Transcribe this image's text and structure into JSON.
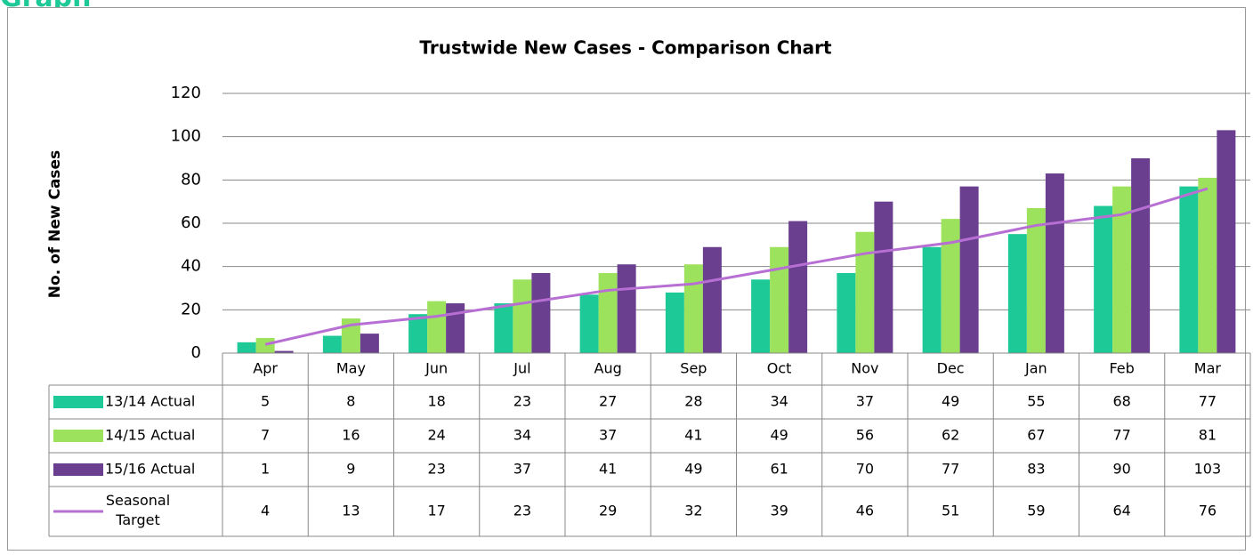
{
  "heading": "Graph",
  "chart_data": {
    "type": "bar",
    "title": "Trustwide New Cases - Comparison Chart",
    "y_label": "No. of New Cases",
    "categories": [
      "Apr",
      "May",
      "Jun",
      "Jul",
      "Aug",
      "Sep",
      "Oct",
      "Nov",
      "Dec",
      "Jan",
      "Feb",
      "Mar"
    ],
    "series": [
      {
        "name": "13/14 Actual",
        "color": "#1dc996",
        "values": [
          5,
          8,
          18,
          23,
          27,
          28,
          34,
          37,
          49,
          55,
          68,
          77
        ]
      },
      {
        "name": "14/15 Actual",
        "color": "#9ce25c",
        "values": [
          7,
          16,
          24,
          34,
          37,
          41,
          49,
          56,
          62,
          67,
          77,
          81
        ]
      },
      {
        "name": "15/16 Actual",
        "color": "#6a3f8f",
        "values": [
          1,
          9,
          23,
          37,
          41,
          49,
          61,
          70,
          77,
          83,
          90,
          103
        ]
      },
      {
        "name": "Seasonal Target",
        "color": "#b86fd4",
        "type": "line",
        "values": [
          4,
          13,
          17,
          23,
          29,
          32,
          39,
          46,
          51,
          59,
          64,
          76
        ]
      }
    ],
    "ylim": [
      0,
      120
    ],
    "yticks": [
      0,
      20,
      40,
      60,
      80,
      100,
      120
    ],
    "grid": true
  }
}
